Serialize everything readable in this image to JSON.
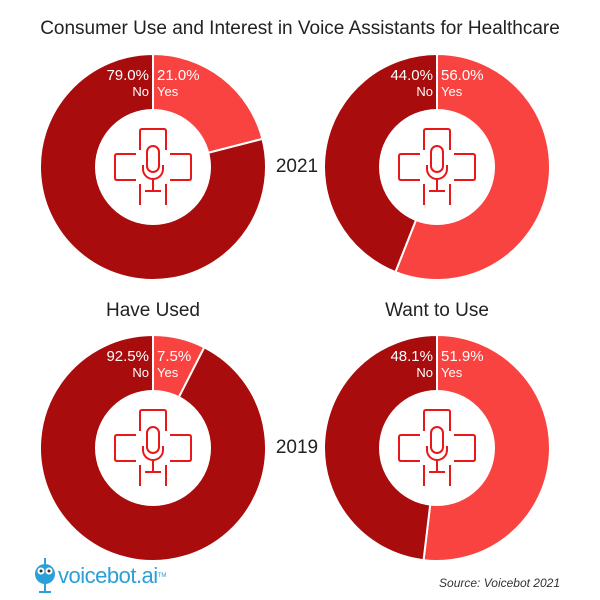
{
  "chart_data": [
    {
      "type": "pie",
      "donut": true,
      "year": "2021",
      "metric": "Have Used",
      "slices": [
        {
          "label": "Yes",
          "value": 21.0,
          "text": "21.0%"
        },
        {
          "label": "No",
          "value": 79.0,
          "text": "79.0%"
        }
      ]
    },
    {
      "type": "pie",
      "donut": true,
      "year": "2021",
      "metric": "Want to Use",
      "slices": [
        {
          "label": "Yes",
          "value": 56.0,
          "text": "56.0%"
        },
        {
          "label": "No",
          "value": 44.0,
          "text": "44.0%"
        }
      ]
    },
    {
      "type": "pie",
      "donut": true,
      "year": "2019",
      "metric": "Have Used",
      "slices": [
        {
          "label": "Yes",
          "value": 7.5,
          "text": "7.5%"
        },
        {
          "label": "No",
          "value": 92.5,
          "text": "92.5%"
        }
      ]
    },
    {
      "type": "pie",
      "donut": true,
      "year": "2019",
      "metric": "Want to Use",
      "slices": [
        {
          "label": "Yes",
          "value": 51.9,
          "text": "51.9%"
        },
        {
          "label": "No",
          "value": 48.1,
          "text": "48.1%"
        }
      ]
    }
  ],
  "title": "Consumer Use and Interest in Voice Assistants for Healthcare",
  "labels": {
    "year_top": "2021",
    "year_bottom": "2019",
    "col_left": "Have Used",
    "col_right": "Want to Use"
  },
  "colors": {
    "yes": "#F94340",
    "no": "#A80C0C",
    "icon": "#E8181A"
  },
  "footer": {
    "logo": "voicebot.ai",
    "tm": "TM",
    "source": "Source: Voicebot 2021"
  }
}
